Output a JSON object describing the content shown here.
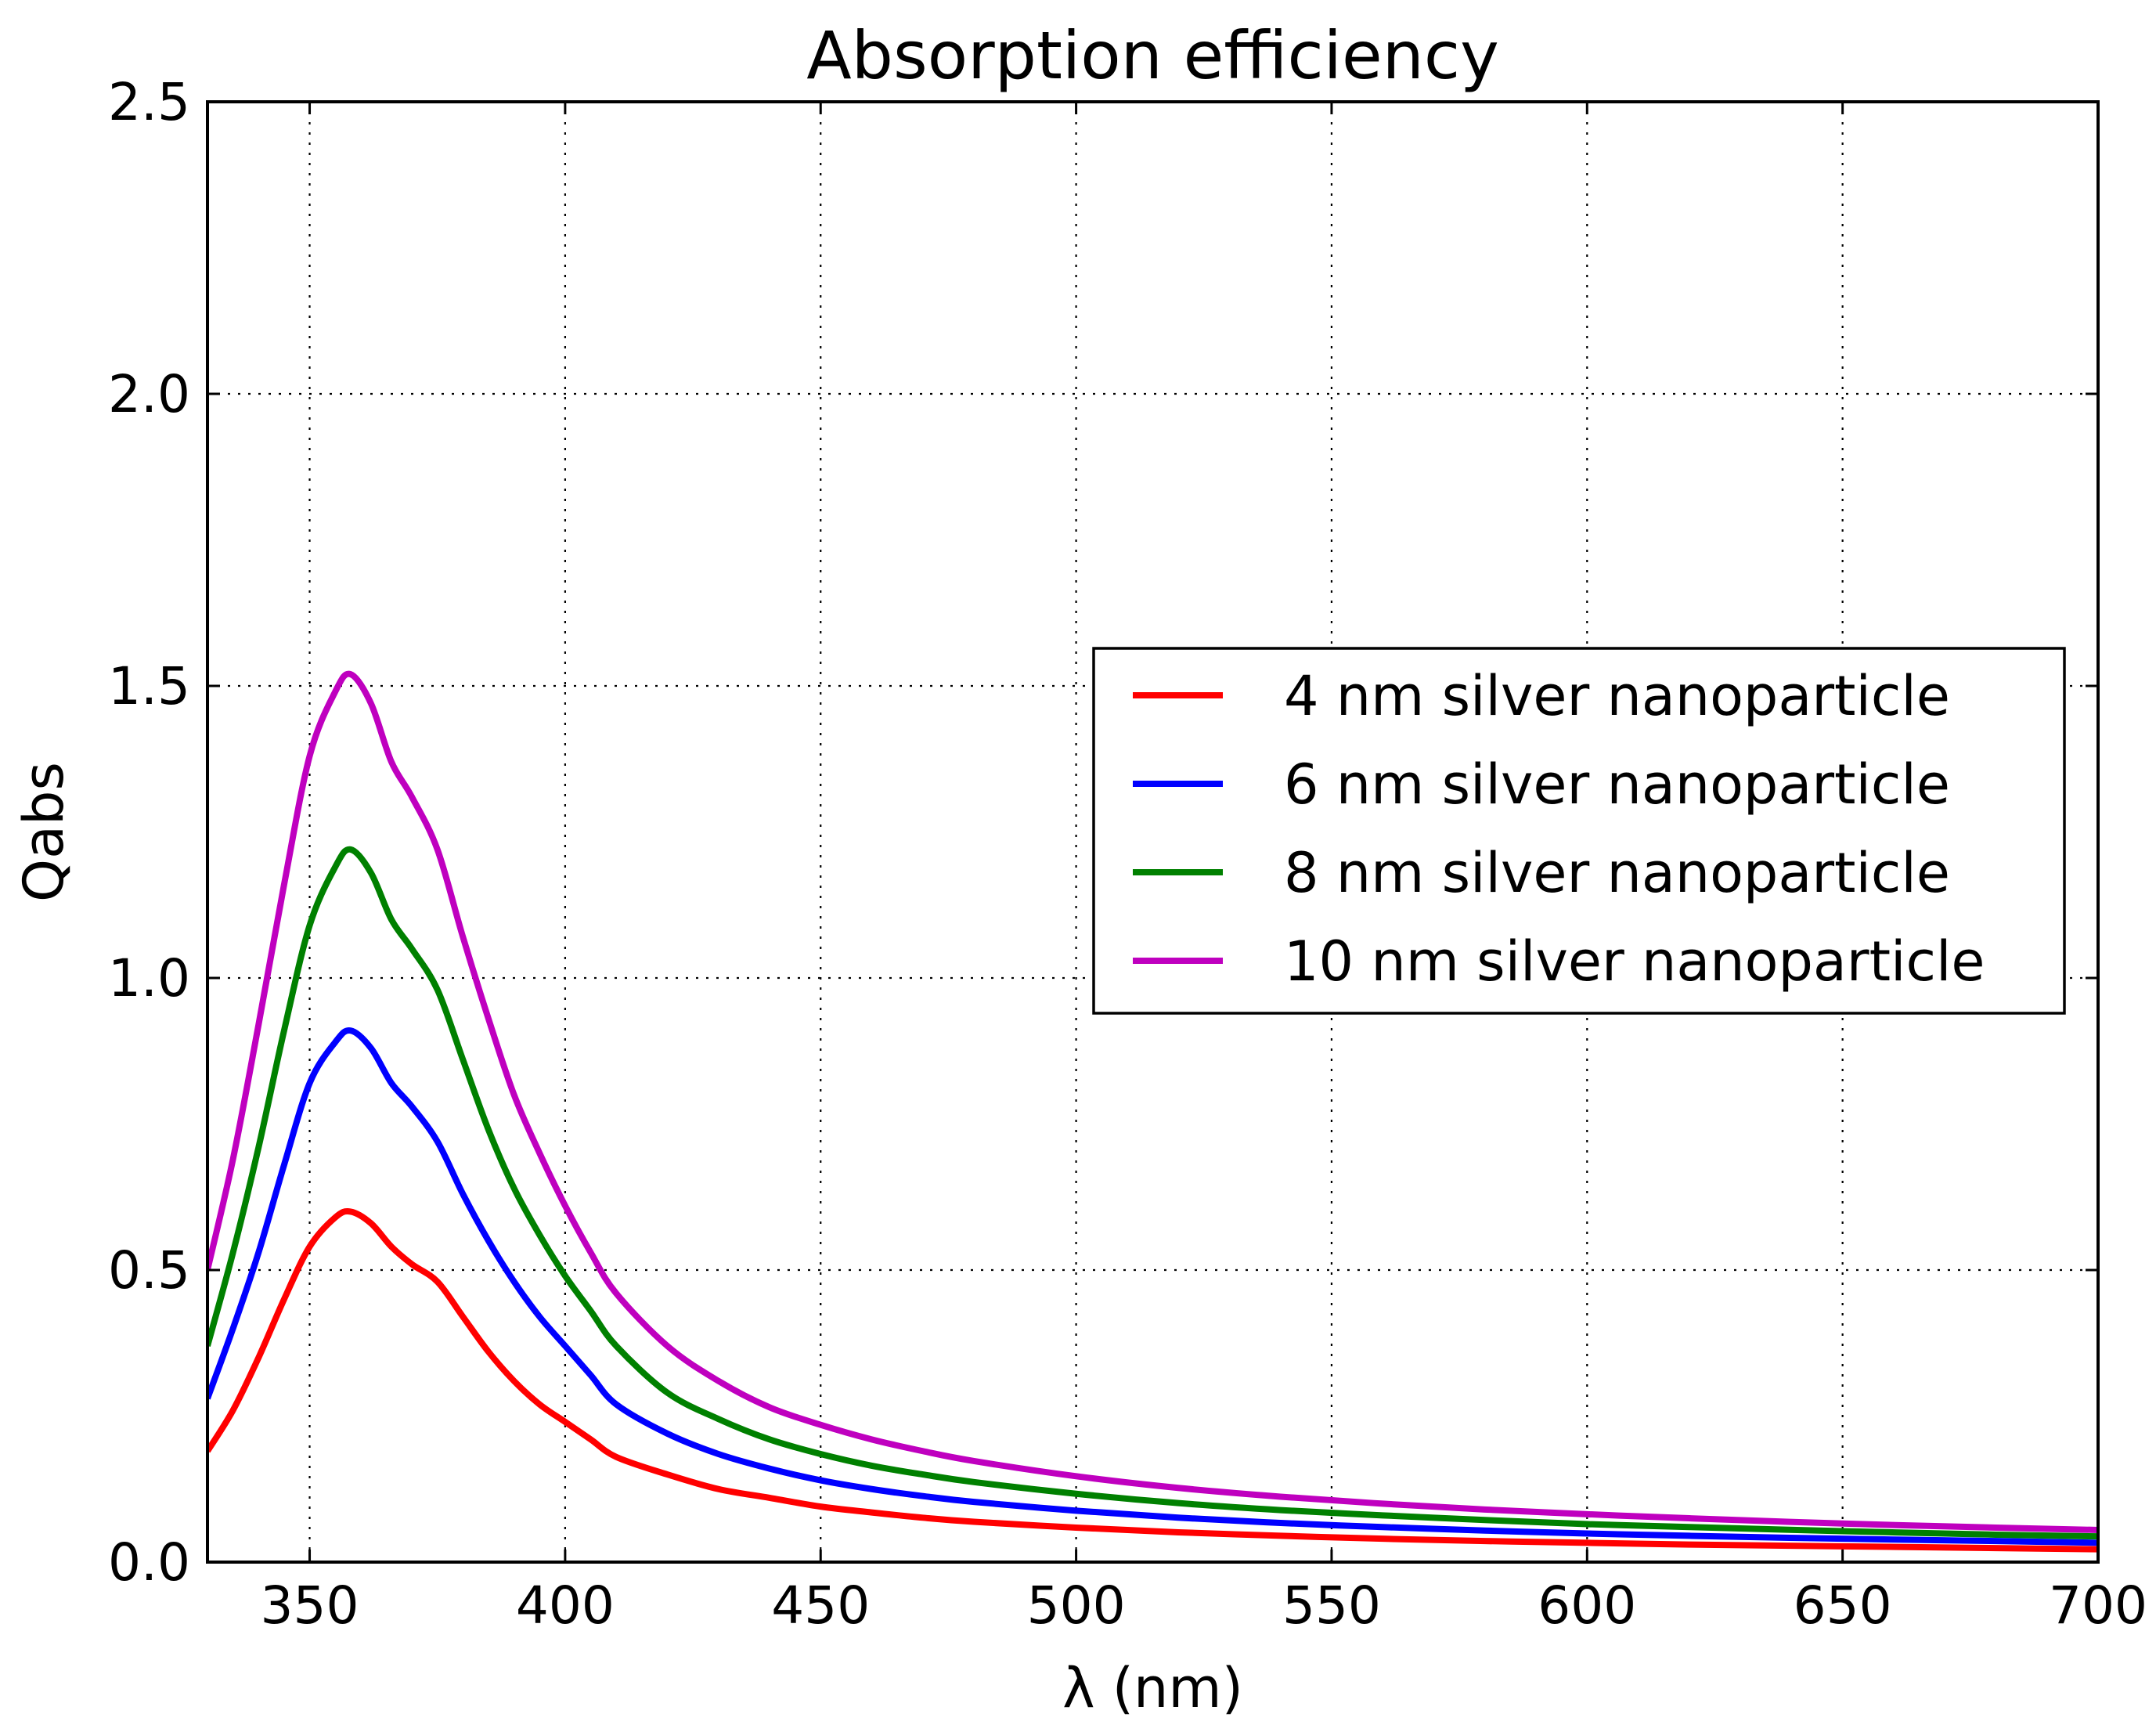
{
  "chart_data": {
    "type": "line",
    "title": "Absorption efficiency",
    "xlabel": "λ (nm)",
    "ylabel": "Qabs",
    "xlim": [
      330,
      700
    ],
    "ylim": [
      0,
      2.5
    ],
    "grid": true,
    "legend_position": "center-right",
    "x_ticks": [
      350,
      400,
      450,
      500,
      550,
      600,
      650,
      700
    ],
    "y_ticks": [
      0.0,
      0.5,
      1.0,
      1.5,
      2.0,
      2.5
    ],
    "y_tick_labels": [
      "0.0",
      "0.5",
      "1.0",
      "1.5",
      "2.0",
      "2.5"
    ],
    "x": [
      330,
      335,
      340,
      345,
      350,
      355,
      358,
      362,
      366,
      370,
      375,
      380,
      385,
      390,
      395,
      400,
      405,
      410,
      420,
      430,
      440,
      450,
      460,
      470,
      480,
      500,
      520,
      540,
      560,
      580,
      600,
      620,
      650,
      680,
      700
    ],
    "series": [
      {
        "name": "4 nm silver nanoparticle",
        "color": "#ff0000",
        "values": [
          0.19,
          0.26,
          0.35,
          0.45,
          0.54,
          0.59,
          0.6,
          0.58,
          0.54,
          0.51,
          0.48,
          0.42,
          0.36,
          0.31,
          0.27,
          0.24,
          0.21,
          0.18,
          0.15,
          0.125,
          0.11,
          0.095,
          0.085,
          0.076,
          0.069,
          0.059,
          0.051,
          0.045,
          0.04,
          0.036,
          0.033,
          0.03,
          0.027,
          0.024,
          0.022
        ]
      },
      {
        "name": "6 nm silver nanoparticle",
        "color": "#0000ff",
        "values": [
          0.28,
          0.4,
          0.53,
          0.68,
          0.82,
          0.89,
          0.91,
          0.88,
          0.82,
          0.78,
          0.72,
          0.63,
          0.55,
          0.48,
          0.42,
          0.37,
          0.32,
          0.27,
          0.22,
          0.185,
          0.16,
          0.14,
          0.125,
          0.113,
          0.103,
          0.088,
          0.076,
          0.067,
          0.06,
          0.054,
          0.049,
          0.045,
          0.04,
          0.036,
          0.033
        ]
      },
      {
        "name": "8 nm silver nanoparticle",
        "color": "#008000",
        "values": [
          0.37,
          0.53,
          0.71,
          0.91,
          1.09,
          1.19,
          1.22,
          1.18,
          1.1,
          1.05,
          0.98,
          0.86,
          0.74,
          0.64,
          0.56,
          0.49,
          0.43,
          0.37,
          0.29,
          0.245,
          0.21,
          0.185,
          0.165,
          0.15,
          0.137,
          0.117,
          0.101,
          0.089,
          0.08,
          0.072,
          0.065,
          0.06,
          0.053,
          0.047,
          0.044
        ]
      },
      {
        "name": "10 nm silver nanoparticle",
        "color": "#bf00bf",
        "values": [
          0.5,
          0.69,
          0.92,
          1.16,
          1.38,
          1.49,
          1.52,
          1.47,
          1.37,
          1.31,
          1.22,
          1.07,
          0.93,
          0.8,
          0.7,
          0.61,
          0.53,
          0.46,
          0.37,
          0.31,
          0.265,
          0.235,
          0.21,
          0.19,
          0.173,
          0.147,
          0.127,
          0.112,
          0.1,
          0.09,
          0.082,
          0.075,
          0.066,
          0.059,
          0.055
        ]
      }
    ]
  }
}
